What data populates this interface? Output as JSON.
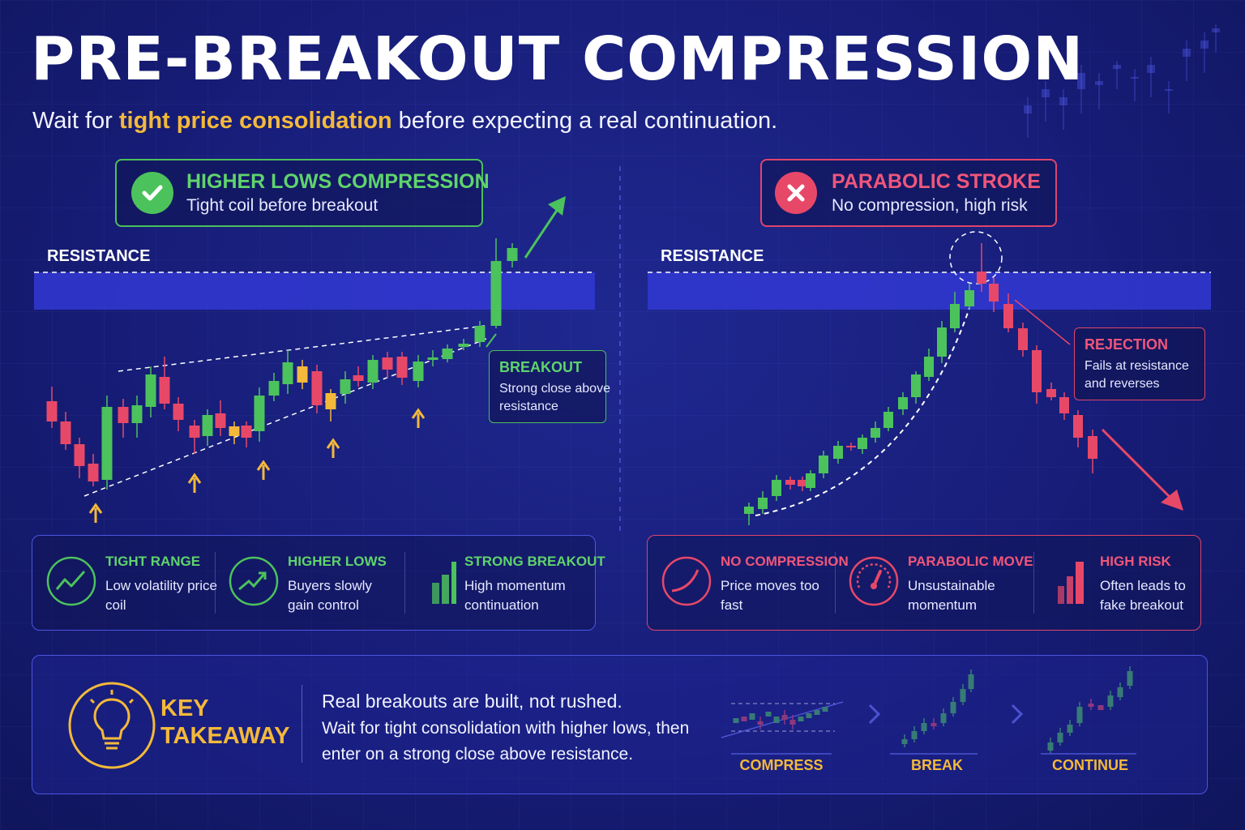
{
  "header": {
    "title": "PRE-BREAKOUT COMPRESSION",
    "subtitle_before": "Wait for ",
    "subtitle_highlight": "tight price consolidation",
    "subtitle_after": " before expecting a real continuation."
  },
  "left": {
    "badge_icon": "check-icon",
    "badge_title": "HIGHER LOWS COMPRESSION",
    "badge_sub": "Tight coil before breakout",
    "resistance": "RESISTANCE",
    "callout_title": "BREAKOUT",
    "callout_body": "Strong close above resistance",
    "features": [
      {
        "icon": "trend-circle-icon",
        "title": "TIGHT RANGE",
        "desc": "Low volatility price coil"
      },
      {
        "icon": "uptrend-circle-icon",
        "title": "HIGHER LOWS",
        "desc": "Buyers slowly gain control"
      },
      {
        "icon": "bar-growth-icon",
        "title": "STRONG BREAKOUT",
        "desc": "High momentum continuation"
      }
    ]
  },
  "right": {
    "badge_icon": "x-icon",
    "badge_title": "PARABOLIC STROKE",
    "badge_sub": "No compression, high risk",
    "resistance": "RESISTANCE",
    "callout_title": "REJECTION",
    "callout_body": "Fails at resistance and reverses",
    "features": [
      {
        "icon": "curve-circle-icon",
        "title": "NO COMPRESSION",
        "desc": "Price moves too fast"
      },
      {
        "icon": "speedometer-icon",
        "title": "PARABOLIC MOVE",
        "desc": "Unsustainable momentum"
      },
      {
        "icon": "bar-risk-icon",
        "title": "HIGH RISK",
        "desc": "Often leads to fake breakout"
      }
    ]
  },
  "takeaway": {
    "icon": "lightbulb-icon",
    "title": "KEY TAKEAWAY",
    "line1": "Real breakouts are built, not rushed.",
    "line2": "Wait for tight consolidation with higher lows, then enter on a strong close above resistance.",
    "steps": [
      "COMPRESS",
      "BREAK",
      "CONTINUE"
    ]
  },
  "colors": {
    "bull": "#4cc25c",
    "bear": "#e84868",
    "accent": "#f4b93a",
    "background": "#171d78",
    "zone": "#3138d4"
  }
}
